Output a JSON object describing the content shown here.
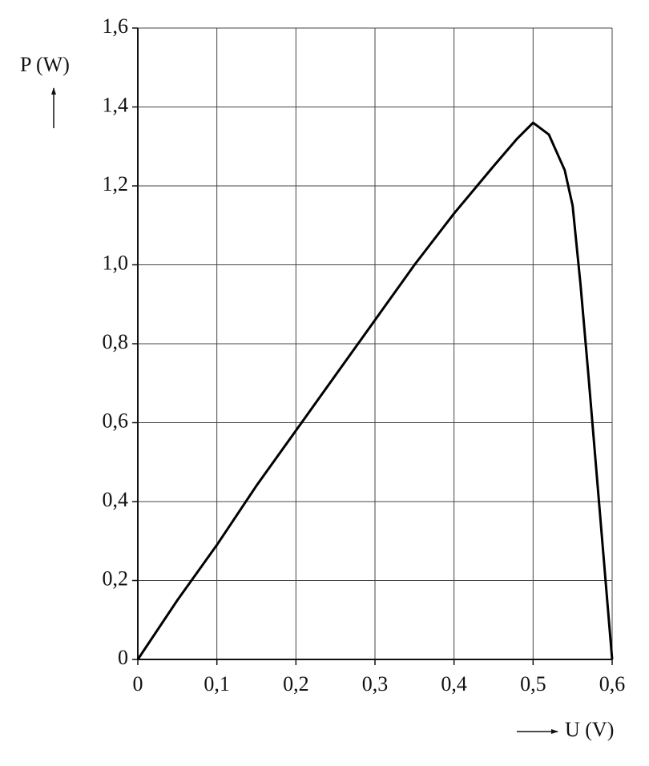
{
  "chart_data": {
    "type": "line",
    "ylabel": "P (W)",
    "xlabel": "U (V)",
    "x": [
      0,
      0.05,
      0.1,
      0.15,
      0.2,
      0.25,
      0.3,
      0.35,
      0.4,
      0.45,
      0.48,
      0.5,
      0.52,
      0.54,
      0.55,
      0.555,
      0.56,
      0.57,
      0.58,
      0.59,
      0.6
    ],
    "series": [
      {
        "color": "#000000",
        "values": [
          0,
          0.15,
          0.29,
          0.44,
          0.58,
          0.72,
          0.86,
          1.0,
          1.13,
          1.25,
          1.32,
          1.36,
          1.33,
          1.24,
          1.15,
          1.05,
          0.95,
          0.72,
          0.48,
          0.24,
          0
        ]
      }
    ],
    "xlim": [
      0,
      0.6
    ],
    "ylim": [
      0,
      1.6
    ],
    "xticks": [
      0,
      {
        "value": 0.1,
        "label": "0,1"
      },
      {
        "value": 0.2,
        "label": "0,2"
      },
      {
        "value": 0.3,
        "label": "0,3"
      },
      {
        "value": 0.4,
        "label": "0,4"
      },
      {
        "value": 0.5,
        "label": "0,5"
      },
      {
        "value": 0.6,
        "label": "0,6"
      }
    ],
    "yticks": [
      0,
      {
        "value": 0.2,
        "label": "0,2"
      },
      {
        "value": 0.4,
        "label": "0,4"
      },
      {
        "value": 0.6,
        "label": "0,6"
      },
      {
        "value": 0.8,
        "label": "0,8"
      },
      {
        "value": 1.0,
        "label": "1,0"
      },
      {
        "value": 1.2,
        "label": "1,2"
      },
      {
        "value": 1.4,
        "label": "1,4"
      },
      {
        "value": 1.6,
        "label": "1,6"
      }
    ],
    "grid": true
  }
}
